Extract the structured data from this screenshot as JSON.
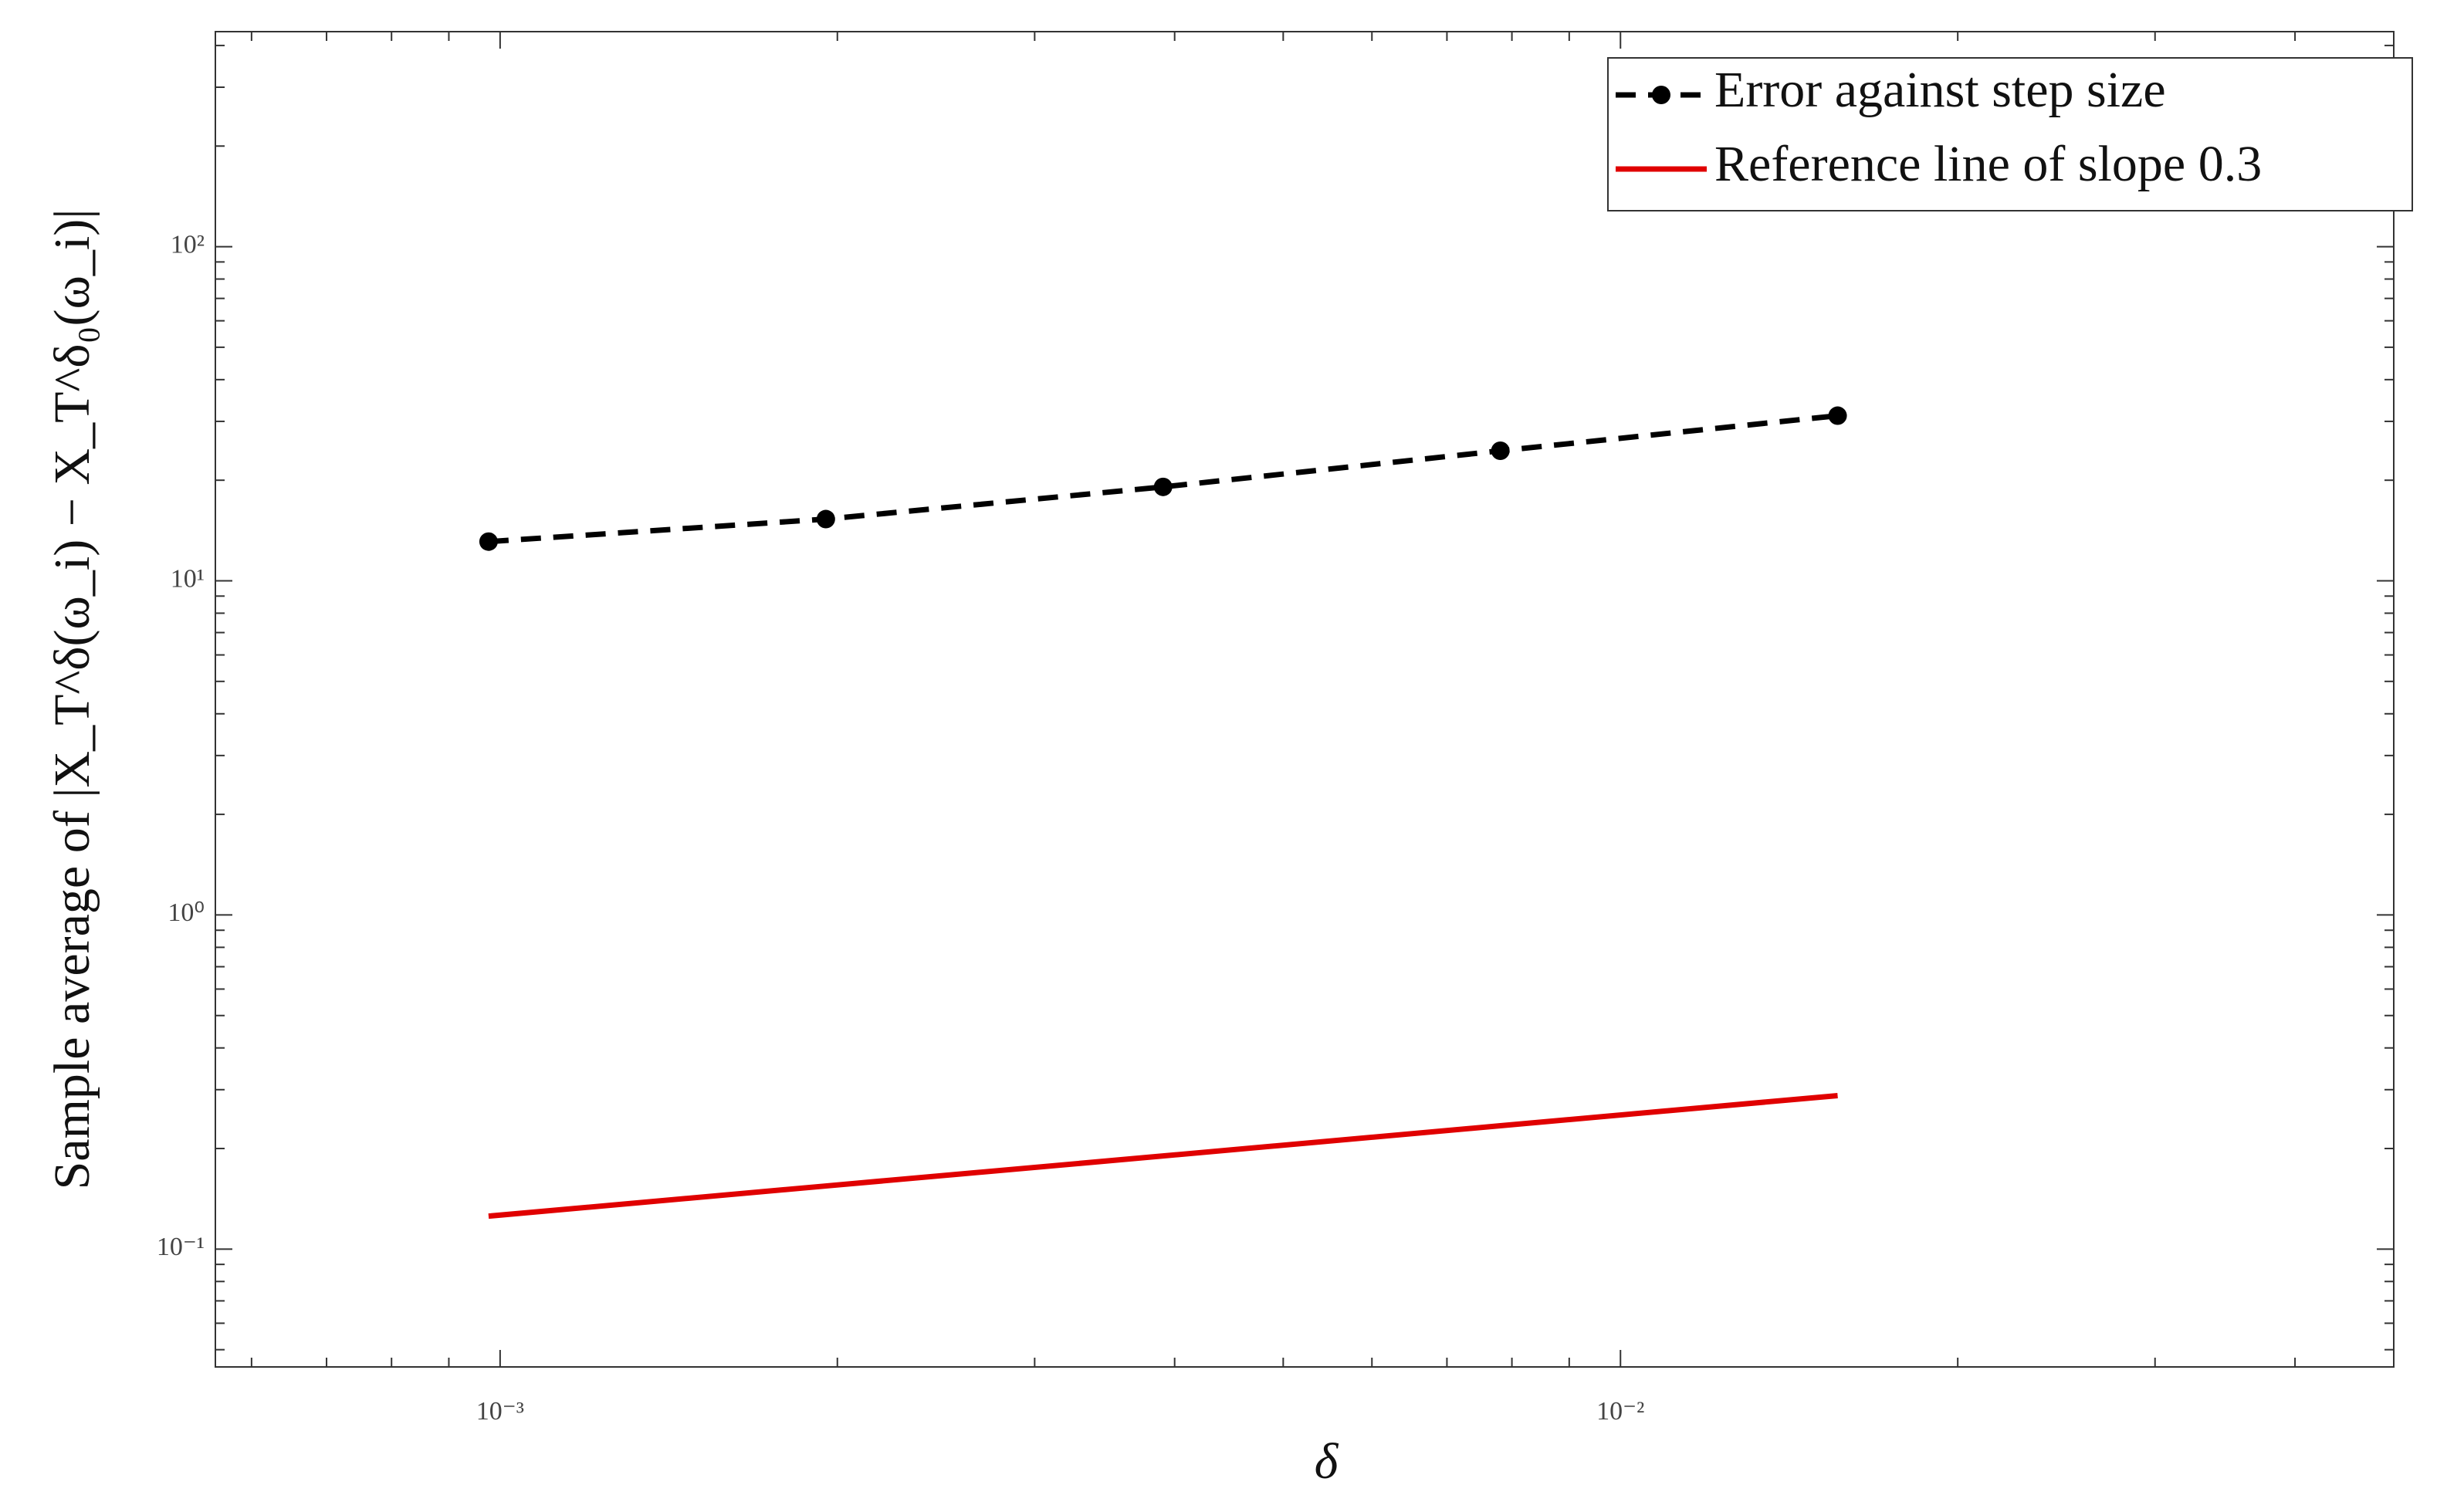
{
  "chart_data": {
    "type": "line",
    "xlabel": "δ",
    "ylabel": "Sample average of |X_T^δ(ω_i) − X_T^δ₀(ω_i)|",
    "log_x": true,
    "log_y": true,
    "legend": "top-right",
    "x": [
      0.0009765625,
      0.001953125,
      0.00390625,
      0.0078125,
      0.015625
    ],
    "series": [
      {
        "name": "Error against step size",
        "color": "#000000",
        "dash": true,
        "markers": true,
        "values": [
          13.1,
          15.3,
          19.1,
          24.5,
          31.2
        ]
      },
      {
        "name": "Reference line of slope 0.3",
        "color": "#e00000",
        "dash": false,
        "markers": false,
        "values": [
          0.1255,
          0.1545,
          0.19,
          0.234,
          0.288
        ]
      }
    ],
    "xlim": [
      0.000557,
      0.049
    ],
    "ylim": [
      0.0444,
      440
    ],
    "xticks": [
      {
        "value": 0.001,
        "label": "10⁻³"
      },
      {
        "value": 0.01,
        "label": "10⁻²"
      }
    ],
    "yticks": [
      {
        "value": 0.1,
        "label": "10⁻¹"
      },
      {
        "value": 1,
        "label": "10⁰"
      },
      {
        "value": 10,
        "label": "10¹"
      },
      {
        "value": 100,
        "label": "10²"
      }
    ],
    "xminorticks": [
      0.0006,
      0.0007,
      0.0008,
      0.0009,
      0.002,
      0.003,
      0.004,
      0.005,
      0.006,
      0.007,
      0.008,
      0.009,
      0.02,
      0.03,
      0.04
    ],
    "yminorticks": [
      0.05,
      0.06,
      0.07,
      0.08,
      0.09,
      0.2,
      0.3,
      0.4,
      0.5,
      0.6,
      0.7,
      0.8,
      0.9,
      2,
      3,
      4,
      5,
      6,
      7,
      8,
      9,
      20,
      30,
      40,
      50,
      60,
      70,
      80,
      90,
      200,
      300,
      400
    ]
  }
}
